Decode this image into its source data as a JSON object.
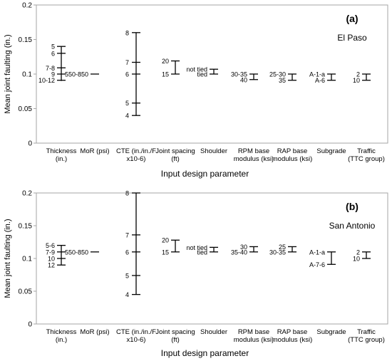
{
  "chart_data": [
    {
      "type": "range",
      "panel_label": "(a)",
      "location": "El Paso",
      "ylabel": "Mean joint faulting (in.)",
      "xlabel": "Input design parameter",
      "ylim": [
        0,
        0.2
      ],
      "yticks": [
        "0",
        "0.05",
        "0.1",
        "0.15",
        "0.2"
      ],
      "categories": [
        {
          "label": [
            "Thickness",
            "(in.)"
          ],
          "range": [
            0.09,
            0.14
          ],
          "levels": [
            {
              "label": "5",
              "value": 0.14
            },
            {
              "label": "6",
              "value": 0.13
            },
            {
              "label": "7-8",
              "value": 0.109
            },
            {
              "label": "9",
              "value": 0.1
            },
            {
              "label": "10-12",
              "value": 0.091
            }
          ]
        },
        {
          "label": [
            "MoR (psi)"
          ],
          "range": [
            0.1,
            0.1
          ],
          "levels": [
            {
              "label": "550-850",
              "value": 0.1
            }
          ]
        },
        {
          "label": [
            "CTE (in./in./F",
            "x10-6)"
          ],
          "range": [
            0.04,
            0.16
          ],
          "levels": [
            {
              "label": "8",
              "value": 0.16
            },
            {
              "label": "7",
              "value": 0.117
            },
            {
              "label": "6",
              "value": 0.1
            },
            {
              "label": "5",
              "value": 0.058
            },
            {
              "label": "4",
              "value": 0.04
            }
          ]
        },
        {
          "label": [
            "Joint spacing",
            "(ft)"
          ],
          "range": [
            0.1,
            0.119
          ],
          "levels": [
            {
              "label": "20",
              "value": 0.119
            },
            {
              "label": "15",
              "value": 0.1
            }
          ]
        },
        {
          "label": [
            "Shoulder"
          ],
          "range": [
            0.1,
            0.107
          ],
          "levels": [
            {
              "label": "not tied",
              "value": 0.107
            },
            {
              "label": "tied",
              "value": 0.1
            }
          ]
        },
        {
          "label": [
            "RPM base",
            "modulus (ksi)"
          ],
          "range": [
            0.092,
            0.1
          ],
          "levels": [
            {
              "label": "30-35",
              "value": 0.1
            },
            {
              "label": "40",
              "value": 0.092
            }
          ]
        },
        {
          "label": [
            "RAP base",
            "modulus (ksi)"
          ],
          "range": [
            0.091,
            0.1
          ],
          "levels": [
            {
              "label": "25-30",
              "value": 0.1
            },
            {
              "label": "35",
              "value": 0.091
            }
          ]
        },
        {
          "label": [
            "Subgrade"
          ],
          "range": [
            0.091,
            0.1
          ],
          "levels": [
            {
              "label": "A-1-a",
              "value": 0.1
            },
            {
              "label": "A-6",
              "value": 0.091
            }
          ]
        },
        {
          "label": [
            "Traffic",
            "(TTC group)"
          ],
          "range": [
            0.091,
            0.1
          ],
          "levels": [
            {
              "label": "2",
              "value": 0.1
            },
            {
              "label": "10",
              "value": 0.091
            }
          ]
        }
      ]
    },
    {
      "type": "range",
      "panel_label": "(b)",
      "location": "San Antonio",
      "ylabel": "Mean joint faulting (in.)",
      "xlabel": "Input design parameter",
      "ylim": [
        0,
        0.2
      ],
      "yticks": [
        "0",
        "0.05",
        "0.1",
        "0.15",
        "0.2"
      ],
      "categories": [
        {
          "label": [
            "Thickness",
            "(in.)"
          ],
          "range": [
            0.09,
            0.12
          ],
          "levels": [
            {
              "label": "5-6",
              "value": 0.12
            },
            {
              "label": "7-9",
              "value": 0.11
            },
            {
              "label": "10",
              "value": 0.1
            },
            {
              "label": "12",
              "value": 0.09
            }
          ]
        },
        {
          "label": [
            "MoR (psi)"
          ],
          "range": [
            0.11,
            0.11
          ],
          "levels": [
            {
              "label": "550-850",
              "value": 0.11
            }
          ]
        },
        {
          "label": [
            "CTE (in./in./F",
            "x10-6)"
          ],
          "range": [
            0.045,
            0.2
          ],
          "levels": [
            {
              "label": "8",
              "value": 0.2
            },
            {
              "label": "7",
              "value": 0.136
            },
            {
              "label": "6",
              "value": 0.11
            },
            {
              "label": "5",
              "value": 0.074
            },
            {
              "label": "4",
              "value": 0.045
            }
          ]
        },
        {
          "label": [
            "Joint spacing",
            "(ft)"
          ],
          "range": [
            0.11,
            0.128
          ],
          "levels": [
            {
              "label": "20",
              "value": 0.128
            },
            {
              "label": "15",
              "value": 0.11
            }
          ]
        },
        {
          "label": [
            "Shoulder"
          ],
          "range": [
            0.11,
            0.117
          ],
          "levels": [
            {
              "label": "not tied",
              "value": 0.117
            },
            {
              "label": "tied",
              "value": 0.11
            }
          ]
        },
        {
          "label": [
            "RPM base",
            "modulus (ksi)"
          ],
          "range": [
            0.11,
            0.118
          ],
          "levels": [
            {
              "label": "30",
              "value": 0.118
            },
            {
              "label": "35-40",
              "value": 0.11
            }
          ]
        },
        {
          "label": [
            "RAP base",
            "modulus (ksi)"
          ],
          "range": [
            0.11,
            0.118
          ],
          "levels": [
            {
              "label": "25",
              "value": 0.118
            },
            {
              "label": "30-35",
              "value": 0.11
            }
          ]
        },
        {
          "label": [
            "Subgrade"
          ],
          "range": [
            0.091,
            0.11
          ],
          "levels": [
            {
              "label": "A-1-a",
              "value": 0.11
            },
            {
              "label": "A-7-6",
              "value": 0.091
            }
          ]
        },
        {
          "label": [
            "Traffic",
            "(TTC group)"
          ],
          "range": [
            0.1,
            0.11
          ],
          "levels": [
            {
              "label": "2",
              "value": 0.11
            },
            {
              "label": "10",
              "value": 0.1
            }
          ]
        }
      ]
    }
  ]
}
